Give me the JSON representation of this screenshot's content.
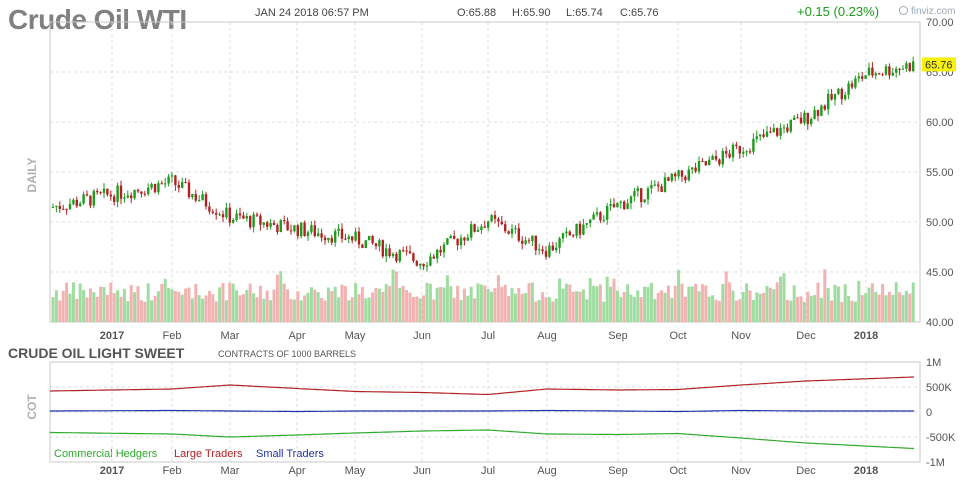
{
  "header": {
    "ticker": "Crude Oil WTI",
    "date": "JAN 24 2018 06:57 PM",
    "open": "O:65.88",
    "high": "H:65.90",
    "low": "L:65.74",
    "close": "C:65.76",
    "change": "+0.15 (0.23%)",
    "brand": "finviz.com"
  },
  "cot_section": {
    "title": "CRUDE OIL LIGHT SWEET",
    "subtitle": "CONTRACTS OF 1000 BARRELS"
  },
  "colors": {
    "up": "#1f9b1f",
    "down": "#b22222",
    "volume_up": "#9fdc9f",
    "volume_down": "#f3b2b2",
    "commercial": "#2eaa2e",
    "large": "#b22222",
    "small": "#2233aa",
    "price_tag": "#f6f20c"
  },
  "chart_data": [
    {
      "type": "candlestick",
      "panel_label": "DAILY",
      "x_tick_labels": [
        "2017",
        "Feb",
        "Mar",
        "Apr",
        "May",
        "Jun",
        "Jul",
        "Aug",
        "Sep",
        "Oct",
        "Nov",
        "Dec",
        "2018"
      ],
      "y_tick_labels": [
        "70.00",
        "65.00",
        "60.00",
        "55.00",
        "50.00",
        "45.00",
        "40.00"
      ],
      "ylim": [
        40,
        70
      ],
      "last_price": "65.76",
      "has_volume": true,
      "grid": true,
      "monthly_closes": [
        {
          "month": "2017-01",
          "close": 52.8
        },
        {
          "month": "2017-02",
          "close": 54.0
        },
        {
          "month": "2017-03",
          "close": 50.5
        },
        {
          "month": "2017-04",
          "close": 49.3
        },
        {
          "month": "2017-05",
          "close": 48.3
        },
        {
          "month": "2017-06",
          "close": 46.0
        },
        {
          "month": "2017-07",
          "close": 50.2
        },
        {
          "month": "2017-08",
          "close": 47.2
        },
        {
          "month": "2017-09",
          "close": 51.7
        },
        {
          "month": "2017-10",
          "close": 54.4
        },
        {
          "month": "2017-11",
          "close": 57.4
        },
        {
          "month": "2017-12",
          "close": 60.4
        },
        {
          "month": "2018-01",
          "close": 65.76
        }
      ]
    },
    {
      "type": "line",
      "panel_label": "COT",
      "x_tick_labels": [
        "2017",
        "Feb",
        "Mar",
        "Apr",
        "May",
        "Jun",
        "Jul",
        "Aug",
        "Sep",
        "Oct",
        "Nov",
        "Dec",
        "2018"
      ],
      "y_tick_labels": [
        "1M",
        "500K",
        "0",
        "-500K",
        "-1M"
      ],
      "ylim": [
        -1000000,
        1000000
      ],
      "x": [
        "2017-01",
        "2017-02",
        "2017-03",
        "2017-04",
        "2017-05",
        "2017-06",
        "2017-07",
        "2017-08",
        "2017-09",
        "2017-10",
        "2017-11",
        "2017-12",
        "2018-01"
      ],
      "series": [
        {
          "name": "Commercial Hedgers",
          "values": [
            -410000,
            -440000,
            -500000,
            -460000,
            -420000,
            -380000,
            -360000,
            -440000,
            -450000,
            -430000,
            -520000,
            -620000,
            -730000
          ]
        },
        {
          "name": "Large Traders",
          "values": [
            420000,
            460000,
            540000,
            470000,
            410000,
            390000,
            350000,
            460000,
            440000,
            450000,
            540000,
            620000,
            700000
          ]
        },
        {
          "name": "Small Traders",
          "values": [
            20000,
            30000,
            20000,
            10000,
            20000,
            20000,
            20000,
            30000,
            20000,
            10000,
            30000,
            20000,
            20000
          ]
        }
      ]
    }
  ]
}
